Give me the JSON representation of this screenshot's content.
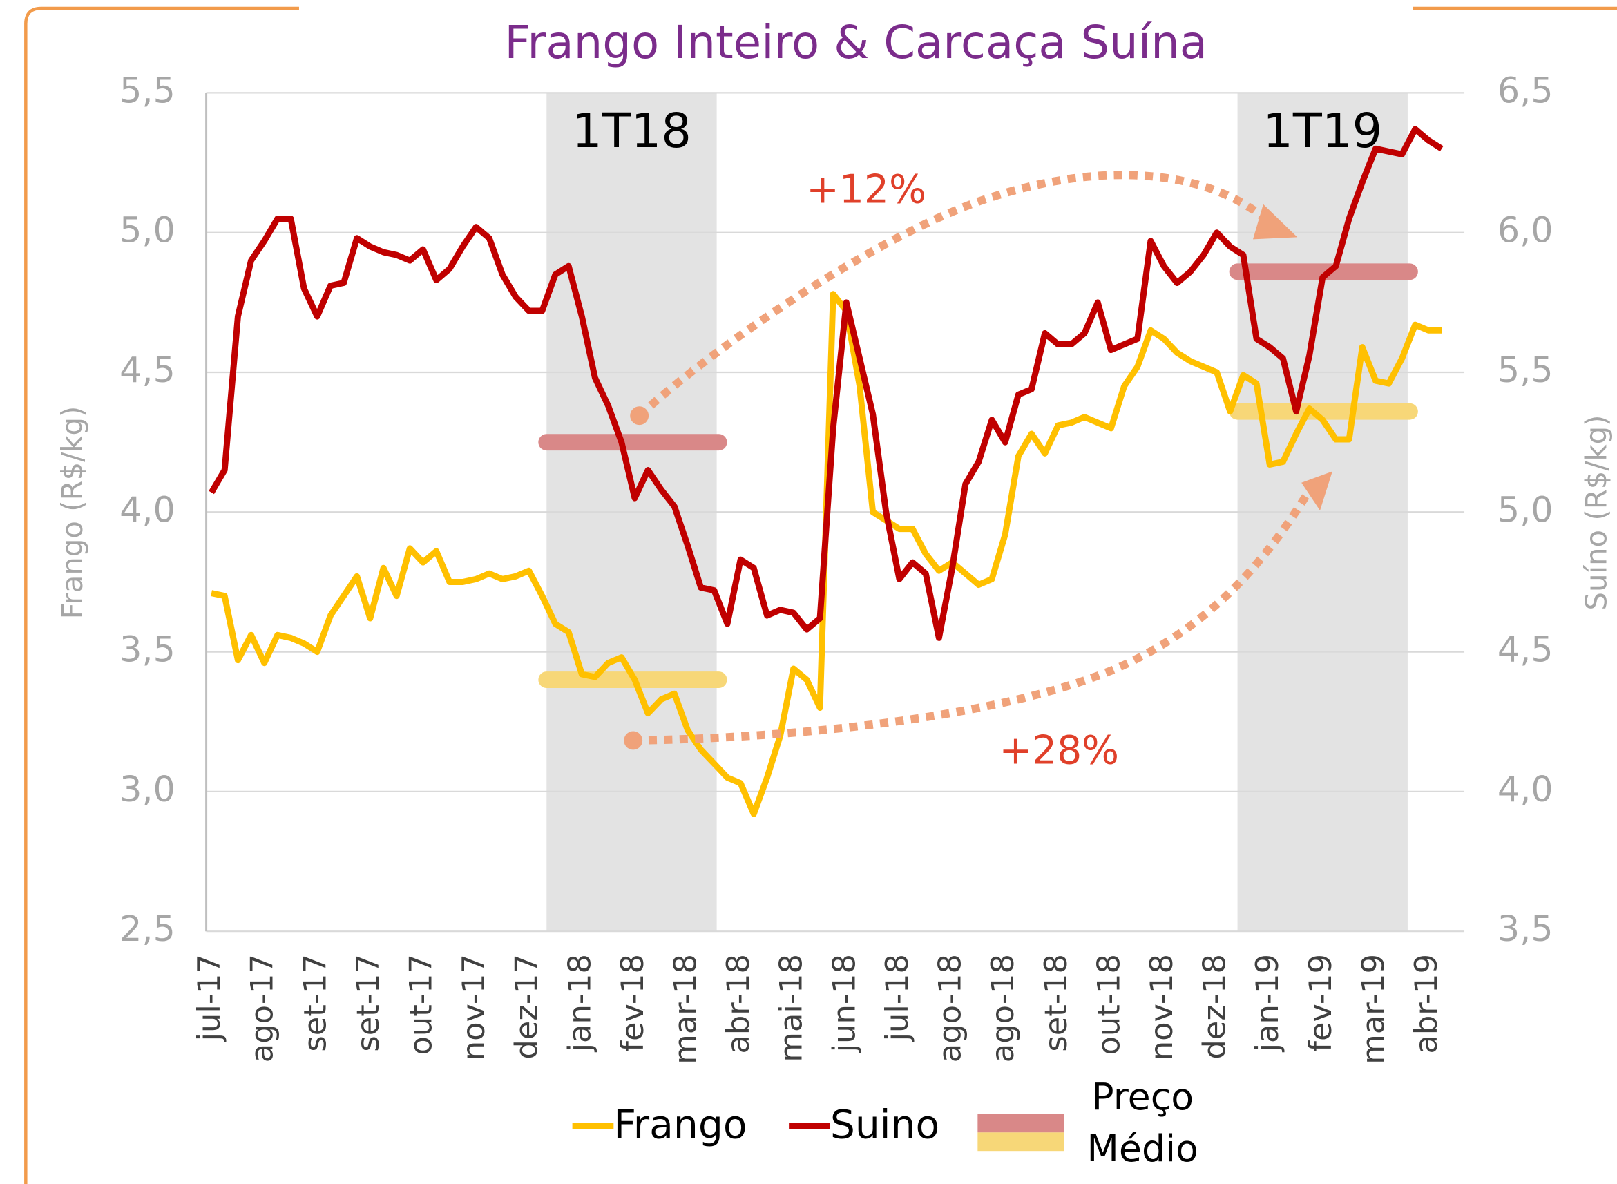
{
  "chart_data": {
    "type": "line",
    "title": "Frango Inteiro & Carcaça Suína",
    "y_label": "Frango (R$/kg)",
    "y2_label": "Suíno (R$/kg)",
    "categories": [
      "jul-17",
      null,
      null,
      null,
      "ago-17",
      null,
      null,
      null,
      "set-17",
      null,
      null,
      null,
      "set-17",
      null,
      null,
      null,
      "out-17",
      null,
      null,
      null,
      "nov-17",
      null,
      null,
      null,
      "dez-17",
      null,
      null,
      null,
      "jan-18",
      null,
      null,
      null,
      "fev-18",
      null,
      null,
      null,
      "mar-18",
      null,
      null,
      null,
      "abr-18",
      null,
      null,
      null,
      "mai-18",
      null,
      null,
      null,
      "jun-18",
      null,
      null,
      null,
      "jul-18",
      null,
      null,
      null,
      "ago-18",
      null,
      null,
      null,
      "ago-18",
      null,
      null,
      null,
      "set-18",
      null,
      null,
      null,
      "out-18",
      null,
      null,
      null,
      "nov-18",
      null,
      null,
      null,
      "dez-18",
      null,
      null,
      null,
      "jan-19",
      null,
      null,
      null,
      "fev-19",
      null,
      null,
      null,
      "mar-19",
      null,
      null,
      null,
      "abr-19",
      null
    ],
    "series": [
      {
        "name": "Frango",
        "color": "#FFC000",
        "values": [
          3.71,
          3.7,
          3.47,
          3.56,
          3.46,
          3.56,
          3.55,
          3.53,
          3.5,
          3.63,
          3.7,
          3.77,
          3.62,
          3.8,
          3.7,
          3.87,
          3.82,
          3.86,
          3.75,
          3.75,
          3.76,
          3.78,
          3.76,
          3.77,
          3.79,
          3.7,
          3.6,
          3.57,
          3.42,
          3.41,
          3.46,
          3.48,
          3.4,
          3.28,
          3.33,
          3.35,
          3.22,
          3.15,
          3.1,
          3.05,
          3.03,
          2.92,
          3.05,
          3.2,
          3.44,
          3.4,
          3.3,
          4.78,
          4.72,
          4.45,
          4.0,
          3.97,
          3.94,
          3.94,
          3.85,
          3.79,
          3.82,
          3.78,
          3.74,
          3.76,
          3.92,
          4.2,
          4.28,
          4.21,
          4.31,
          4.32,
          4.34,
          4.32,
          4.3,
          4.45,
          4.52,
          4.65,
          4.62,
          4.57,
          4.54,
          4.52,
          4.5,
          4.36,
          4.49,
          4.46,
          4.17,
          4.18,
          4.28,
          4.37,
          4.33,
          4.26,
          4.26,
          4.59,
          4.47,
          4.46,
          4.55,
          4.67,
          4.65,
          4.65
        ]
      },
      {
        "name": "Suino",
        "color": "#C00000",
        "axis": "y2",
        "values": [
          5.07,
          5.15,
          5.7,
          5.9,
          5.97,
          6.05,
          6.05,
          5.8,
          5.7,
          5.81,
          5.82,
          5.98,
          5.95,
          5.93,
          5.92,
          5.9,
          5.94,
          5.83,
          5.87,
          5.95,
          6.02,
          5.98,
          5.85,
          5.77,
          5.72,
          5.72,
          5.85,
          5.88,
          5.7,
          5.48,
          5.38,
          5.25,
          5.05,
          5.15,
          5.08,
          5.02,
          4.88,
          4.73,
          4.72,
          4.6,
          4.83,
          4.8,
          4.63,
          4.65,
          4.64,
          4.58,
          4.62,
          5.3,
          5.75,
          5.55,
          5.35,
          5.0,
          4.76,
          4.82,
          4.78,
          4.55,
          4.8,
          5.1,
          5.18,
          5.33,
          5.25,
          5.42,
          5.44,
          5.64,
          5.6,
          5.6,
          5.64,
          5.75,
          5.58,
          5.6,
          5.62,
          5.97,
          5.88,
          5.82,
          5.86,
          5.92,
          6.0,
          5.95,
          5.92,
          5.62,
          5.59,
          5.55,
          5.36,
          5.56,
          5.84,
          5.88,
          6.05,
          6.18,
          6.3,
          6.29,
          6.28,
          6.37,
          6.33,
          6.3
        ]
      }
    ],
    "periods": [
      {
        "label": "1T18",
        "frango_avg": 3.4,
        "suino_avg": 5.25
      },
      {
        "label": "1T19",
        "frango_avg": 4.36,
        "suino_avg": 5.86
      }
    ],
    "average_legend": [
      "Preço",
      "Médio"
    ],
    "average_colors": {
      "frango": "#F7D778",
      "suino": "#D98888"
    },
    "annotations": [
      "+12%",
      "+28%"
    ],
    "ylim": [
      2.5,
      5.5
    ],
    "yticks": [
      {
        "value": 2.5,
        "label": "2,5"
      },
      {
        "value": 3,
        "label": "3,0"
      },
      {
        "value": 3.5,
        "label": "3,5"
      },
      {
        "value": 4,
        "label": "4,0"
      },
      {
        "value": 4.5,
        "label": "4,5"
      },
      {
        "value": 5,
        "label": "5,0"
      },
      {
        "value": 5.5,
        "label": "5,5"
      }
    ],
    "y2lim": [
      3.5,
      6.5
    ],
    "y2ticks": [
      {
        "value": 3.5,
        "label": "3,5"
      },
      {
        "value": 4,
        "label": "4,0"
      },
      {
        "value": 4.5,
        "label": "4,5"
      },
      {
        "value": 5,
        "label": "5,0"
      },
      {
        "value": 5.5,
        "label": "5,5"
      },
      {
        "value": 6,
        "label": "6,0"
      },
      {
        "value": 6.5,
        "label": "6,5"
      }
    ],
    "grid": true
  }
}
